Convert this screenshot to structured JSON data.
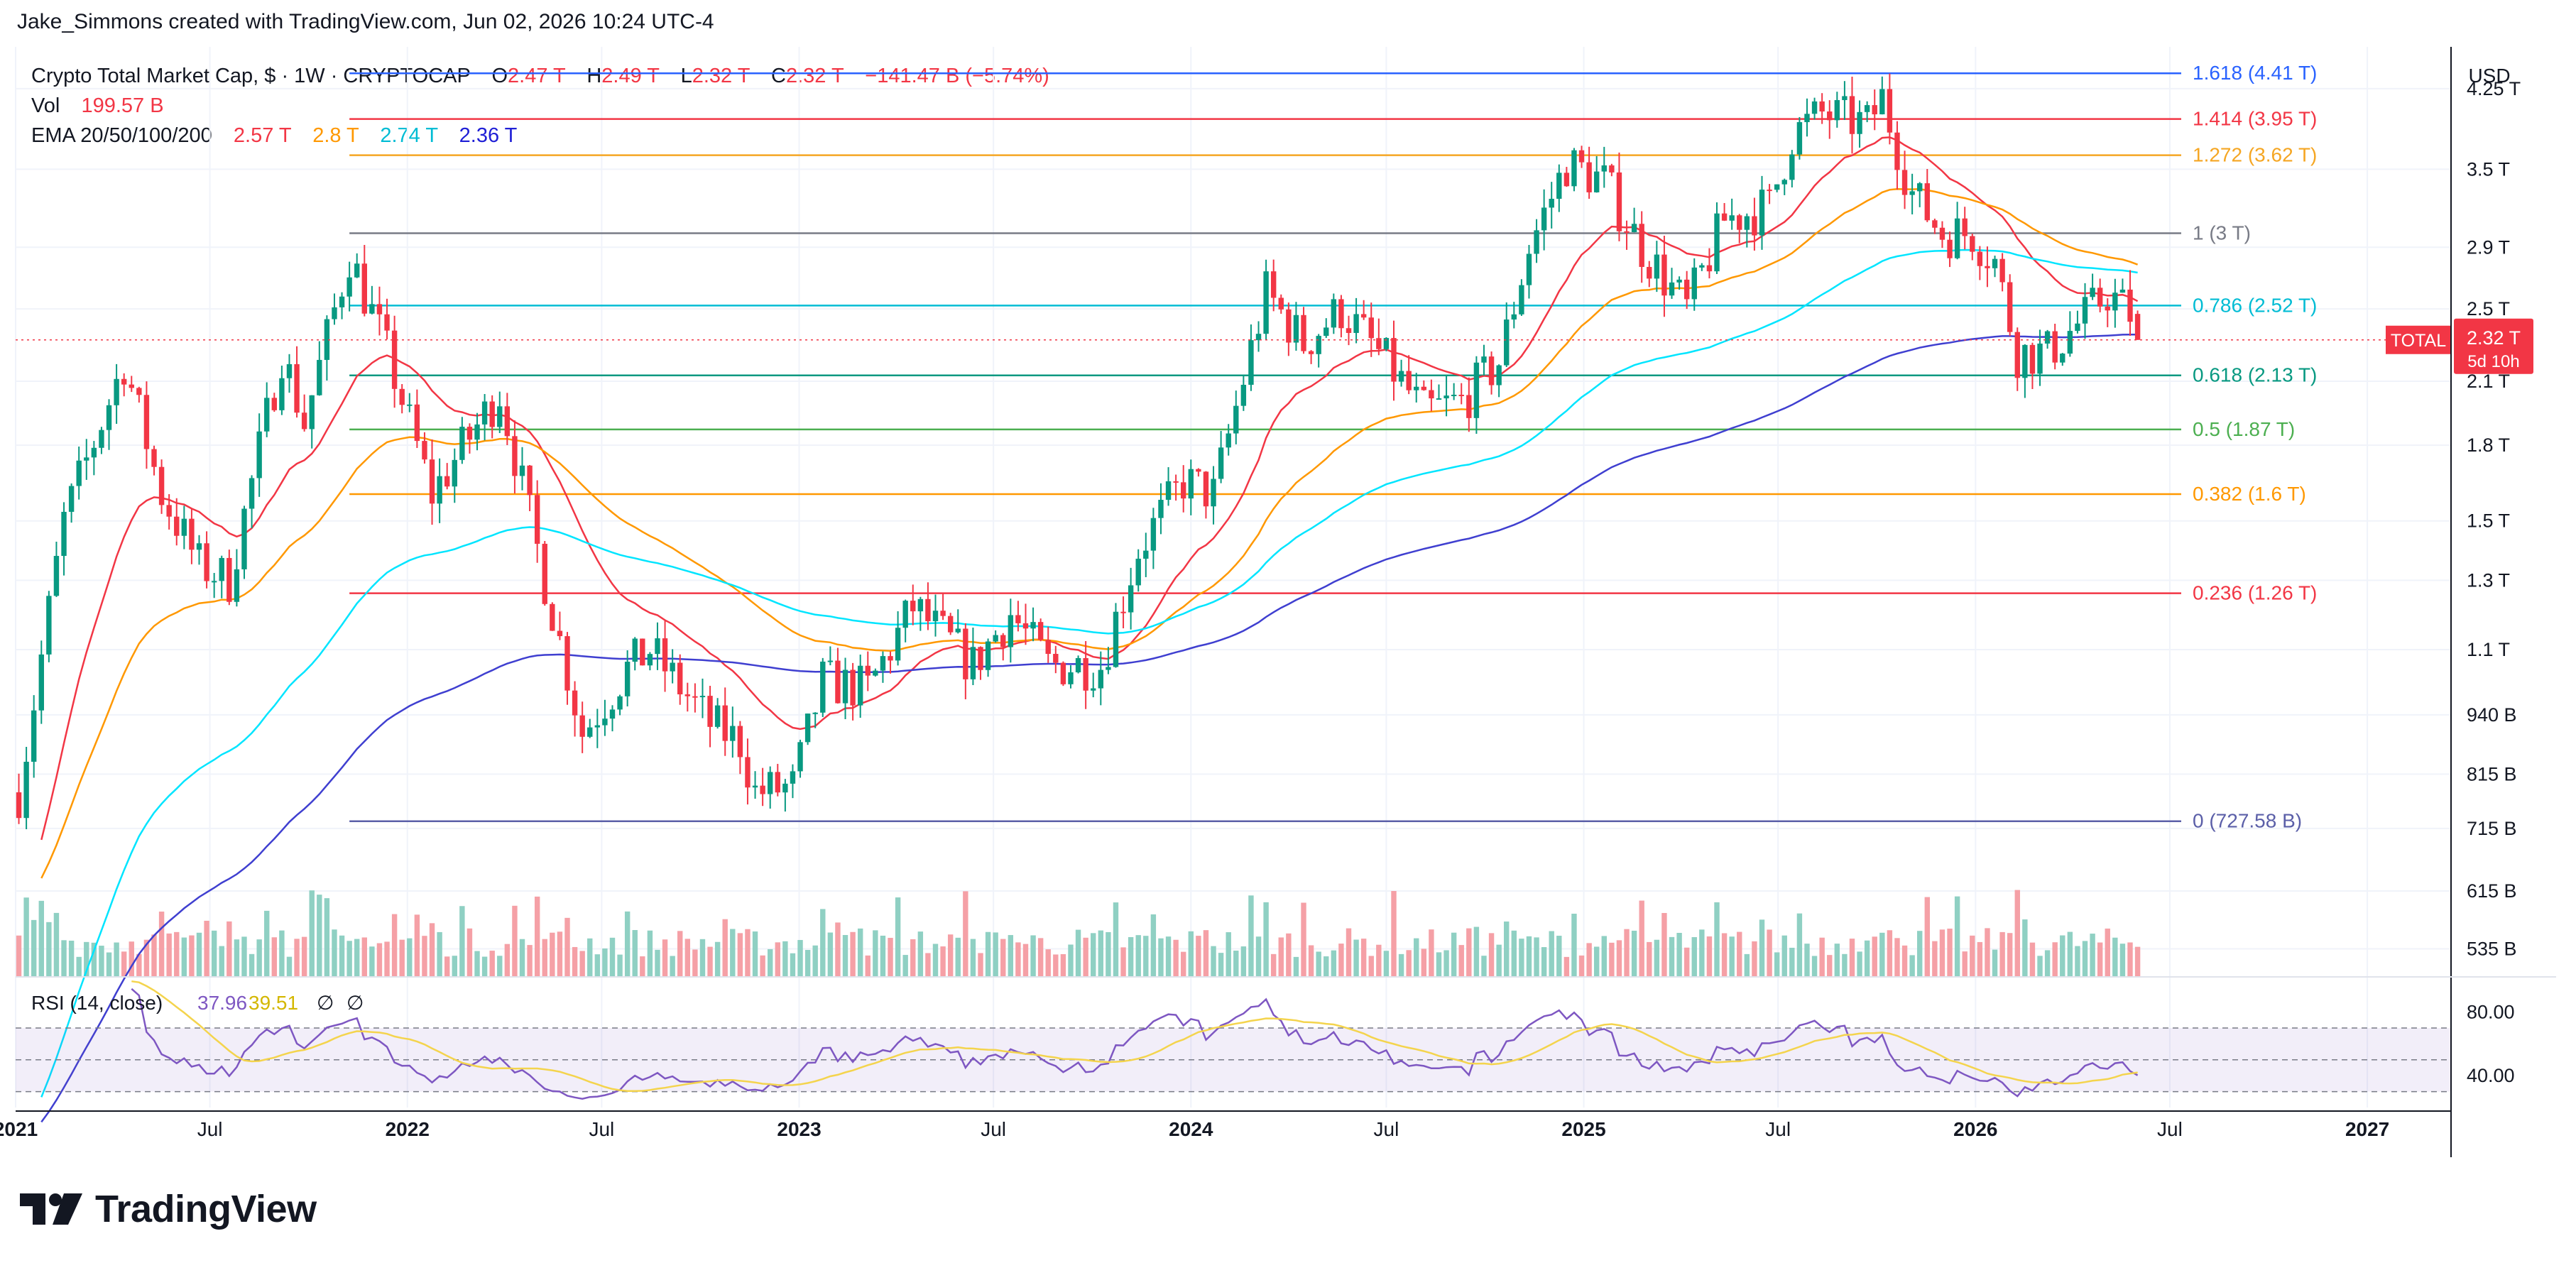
{
  "header": {
    "attribution": "Jake_Simmons created with TradingView.com, Jun 02, 2026 10:24 UTC-4"
  },
  "legend": {
    "symbol": "Crypto Total Market Cap, $ · 1W · CRYPTOCAP",
    "ohlc": [
      {
        "k": "O",
        "v": "2.47 T"
      },
      {
        "k": "H",
        "v": "2.49 T"
      },
      {
        "k": "L",
        "v": "2.32 T"
      },
      {
        "k": "C",
        "v": "2.32 T"
      }
    ],
    "change": "−141.47 B (−5.74%)",
    "vol_label": "Vol",
    "vol_value": "199.57 B",
    "ema_label": "EMA 20/50/100/200",
    "ema_values": [
      {
        "v": "2.57 T",
        "color": "#f23645"
      },
      {
        "v": "2.8 T",
        "color": "#ff9800"
      },
      {
        "v": "2.74 T",
        "color": "#00e5ff"
      },
      {
        "v": "2.36 T",
        "color": "#1f1fd6"
      }
    ]
  },
  "footer": {
    "brand": "TradingView"
  },
  "chart_data": {
    "type": "candlestick",
    "symbol": "TOTAL",
    "currency": "USD",
    "y_scale": "log",
    "ylim": [
      500000000000,
      4700000000000
    ],
    "y_ticks": [
      {
        "label": "4.25 T",
        "v": 4250000000000.0
      },
      {
        "label": "3.5 T",
        "v": 3500000000000.0
      },
      {
        "label": "2.9 T",
        "v": 2900000000000.0
      },
      {
        "label": "2.5 T",
        "v": 2500000000000.0
      },
      {
        "label": "2.1 T",
        "v": 2100000000000.0
      },
      {
        "label": "1.8 T",
        "v": 1800000000000.0
      },
      {
        "label": "1.5 T",
        "v": 1500000000000.0
      },
      {
        "label": "1.3 T",
        "v": 1300000000000.0
      },
      {
        "label": "1.1 T",
        "v": 1100000000000.0
      },
      {
        "label": "940 B",
        "v": 940000000000.0
      },
      {
        "label": "815 B",
        "v": 815000000000.0
      },
      {
        "label": "715 B",
        "v": 715000000000.0
      },
      {
        "label": "615 B",
        "v": 615000000000.0
      },
      {
        "label": "535 B",
        "v": 535000000000.0
      }
    ],
    "x_ticks": [
      {
        "label": "2021",
        "date": "2021-01-01"
      },
      {
        "label": "Jul",
        "date": "2021-07-01"
      },
      {
        "label": "2022",
        "date": "2022-01-01"
      },
      {
        "label": "Jul",
        "date": "2022-07-01"
      },
      {
        "label": "2023",
        "date": "2023-01-01"
      },
      {
        "label": "Jul",
        "date": "2023-07-01"
      },
      {
        "label": "2024",
        "date": "2024-01-01"
      },
      {
        "label": "Jul",
        "date": "2024-07-01"
      },
      {
        "label": "2025",
        "date": "2025-01-01"
      },
      {
        "label": "Jul",
        "date": "2025-07-01"
      },
      {
        "label": "2026",
        "date": "2026-01-01"
      },
      {
        "label": "Jul",
        "date": "2026-07-01"
      },
      {
        "label": "2027",
        "date": "2027-01-01"
      }
    ],
    "x_range": [
      "2021-01-01",
      "2027-03-20"
    ],
    "fib_levels": [
      {
        "label": "1.618 (4.41 T)",
        "v": 4410000000000.0,
        "color": "#2962ff"
      },
      {
        "label": "1.414 (3.95 T)",
        "v": 3950000000000.0,
        "color": "#f23645"
      },
      {
        "label": "1.272 (3.62 T)",
        "v": 3620000000000.0,
        "color": "#f5a623"
      },
      {
        "label": "1 (3 T)",
        "v": 3000000000000.0,
        "color": "#787b86"
      },
      {
        "label": "0.786 (2.52 T)",
        "v": 2520000000000.0,
        "color": "#00bcd4"
      },
      {
        "label": "0.618 (2.13 T)",
        "v": 2130000000000.0,
        "color": "#089981"
      },
      {
        "label": "0.5 (1.87 T)",
        "v": 1870000000000.0,
        "color": "#4caf50"
      },
      {
        "label": "0.382 (1.6 T)",
        "v": 1600000000000.0,
        "color": "#ff9800"
      },
      {
        "label": "0.236 (1.26 T)",
        "v": 1260000000000.0,
        "color": "#f23645"
      },
      {
        "label": "0 (727.58 B)",
        "v": 727580000000.0,
        "color": "#5b5fa8"
      }
    ],
    "fib_start_date": "2021-11-08",
    "price_label": {
      "symbol": "TOTAL",
      "value": "2.32 T",
      "countdown": "5d 10h",
      "v": 2320000000000.0
    },
    "price_anchors": [
      [
        "2021-01-04",
        780000000000.0
      ],
      [
        "2021-02-15",
        1500000000000.0
      ],
      [
        "2021-04-12",
        2200000000000.0
      ],
      [
        "2021-05-17",
        1600000000000.0
      ],
      [
        "2021-06-21",
        1350000000000.0
      ],
      [
        "2021-07-19",
        1300000000000.0
      ],
      [
        "2021-09-06",
        2250000000000.0
      ],
      [
        "2021-09-27",
        1900000000000.0
      ],
      [
        "2021-11-08",
        2850000000000.0
      ],
      [
        "2021-12-13",
        2250000000000.0
      ],
      [
        "2022-01-24",
        1600000000000.0
      ],
      [
        "2022-03-28",
        2050000000000.0
      ],
      [
        "2022-05-09",
        1300000000000.0
      ],
      [
        "2022-06-13",
        900000000000.0
      ],
      [
        "2022-07-25",
        1050000000000.0
      ],
      [
        "2022-08-15",
        1100000000000.0
      ],
      [
        "2022-10-10",
        920000000000.0
      ],
      [
        "2022-11-07",
        880000000000.0
      ],
      [
        "2022-11-21",
        780000000000.0
      ],
      [
        "2022-12-26",
        790000000000.0
      ],
      [
        "2023-01-23",
        1020000000000.0
      ],
      [
        "2023-03-06",
        1000000000000.0
      ],
      [
        "2023-04-17",
        1220000000000.0
      ],
      [
        "2023-06-12",
        1060000000000.0
      ],
      [
        "2023-07-17",
        1200000000000.0
      ],
      [
        "2023-08-21",
        1060000000000.0
      ],
      [
        "2023-10-09",
        1060000000000.0
      ],
      [
        "2023-11-13",
        1400000000000.0
      ],
      [
        "2023-12-25",
        1650000000000.0
      ],
      [
        "2024-01-22",
        1600000000000.0
      ],
      [
        "2024-03-11",
        2600000000000.0
      ],
      [
        "2024-04-15",
        2300000000000.0
      ],
      [
        "2024-05-20",
        2500000000000.0
      ],
      [
        "2024-07-01",
        2200000000000.0
      ],
      [
        "2024-08-05",
        1950000000000.0
      ],
      [
        "2024-09-09",
        2000000000000.0
      ],
      [
        "2024-10-14",
        2200000000000.0
      ],
      [
        "2024-11-11",
        2900000000000.0
      ],
      [
        "2024-12-16",
        3550000000000.0
      ],
      [
        "2025-01-20",
        3400000000000.0
      ],
      [
        "2025-02-24",
        2900000000000.0
      ],
      [
        "2025-04-07",
        2500000000000.0
      ],
      [
        "2025-05-12",
        3100000000000.0
      ],
      [
        "2025-06-23",
        3200000000000.0
      ],
      [
        "2025-07-14",
        3800000000000.0
      ],
      [
        "2025-08-11",
        4000000000000.0
      ],
      [
        "2025-09-22",
        3900000000000.0
      ],
      [
        "2025-10-06",
        4150000000000.0
      ],
      [
        "2025-11-03",
        3300000000000.0
      ],
      [
        "2025-12-01",
        3000000000000.0
      ],
      [
        "2025-12-29",
        3000000000000.0
      ],
      [
        "2026-01-19",
        2800000000000.0
      ],
      [
        "2026-02-09",
        2250000000000.0
      ],
      [
        "2026-03-09",
        2250000000000.0
      ],
      [
        "2026-04-13",
        2450000000000.0
      ],
      [
        "2026-05-04",
        2600000000000.0
      ],
      [
        "2026-05-25",
        2470000000000.0
      ],
      [
        "2026-06-01",
        2320000000000.0
      ]
    ],
    "last_candle": {
      "date": "2026-06-01",
      "open": 2470000000000.0,
      "high": 2490000000000.0,
      "low": 2320000000000.0,
      "close": 2320000000000.0
    },
    "ema_periods": [
      20,
      50,
      100,
      200
    ],
    "ema_colors": [
      "#f23645",
      "#ff9800",
      "#00e5ff",
      "#3f3fd0"
    ],
    "colors": {
      "up": "#089981",
      "down": "#f23645",
      "up_vol": "#8fd0c3",
      "down_vol": "#f5a0a6"
    },
    "volume_range": [
      0,
      900000000000
    ],
    "rsi": {
      "label": "RSI (14, close)",
      "rsi_value": "37.96",
      "ma_value": "39.51",
      "extra": [
        "∅",
        "∅"
      ],
      "ticks": [
        {
          "label": "80.00",
          "v": 80
        },
        {
          "label": "40.00",
          "v": 40
        }
      ],
      "bands": [
        70,
        50,
        30
      ],
      "ylim": [
        20,
        95
      ],
      "rsi_color": "#7e57c2",
      "ma_color": "#f4d44d"
    },
    "axis_title": "USD"
  }
}
